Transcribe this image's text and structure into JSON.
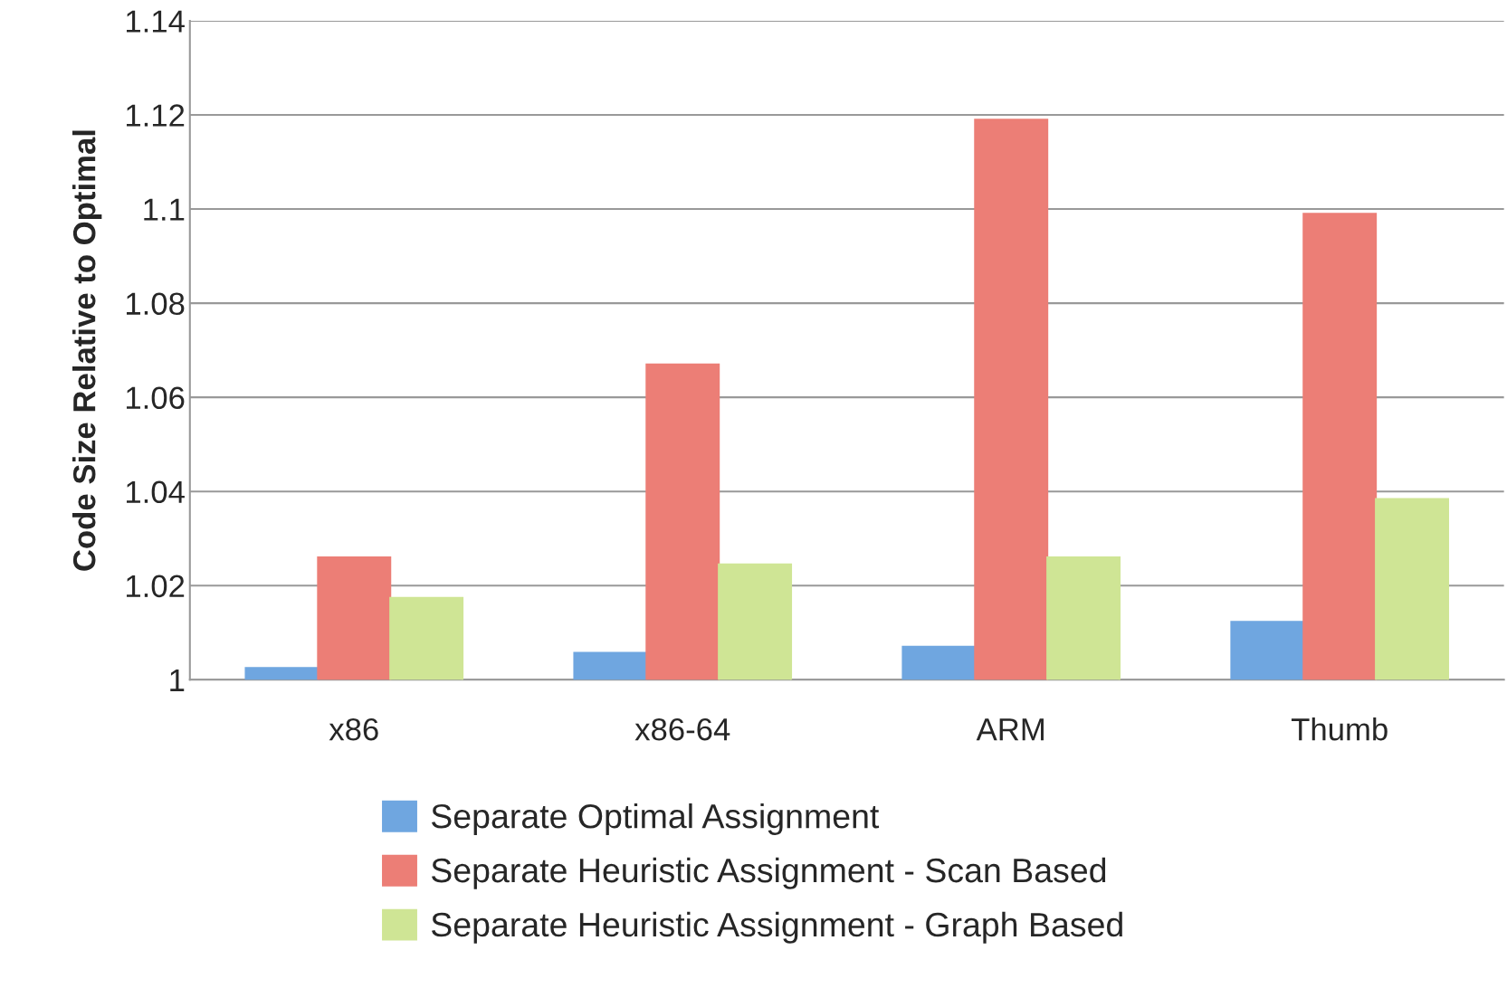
{
  "chart_data": {
    "type": "bar",
    "ylabel": "Code Size Relative to Optimal",
    "categories": [
      "x86",
      "x86-64",
      "ARM",
      "Thumb"
    ],
    "series": [
      {
        "name": "Separate Optimal Assignment",
        "color": "#6fa6e0",
        "values": [
          1.0025,
          1.0057,
          1.007,
          1.0123
        ]
      },
      {
        "name": "Separate Heuristic Assignment - Scan Based",
        "color": "#ec7e76",
        "values": [
          1.026,
          1.067,
          1.119,
          1.099
        ]
      },
      {
        "name": "Separate Heuristic Assignment - Graph Based",
        "color": "#cfe595",
        "values": [
          1.0174,
          1.0245,
          1.026,
          1.0384
        ]
      }
    ],
    "ylim": [
      1,
      1.14
    ],
    "yticks": [
      1,
      1.02,
      1.04,
      1.06,
      1.08,
      1.1,
      1.12,
      1.14
    ],
    "grid": "y",
    "legend": "bottom"
  }
}
